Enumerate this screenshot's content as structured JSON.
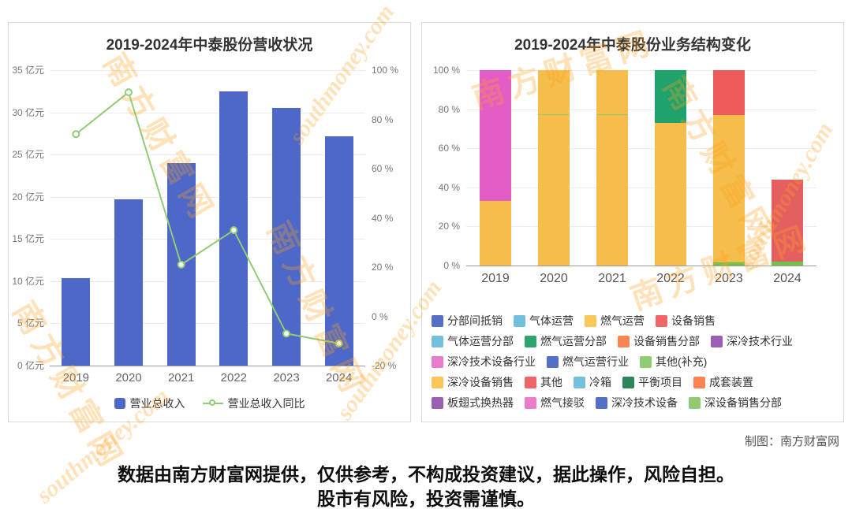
{
  "watermark": {
    "cn": "南方财富网",
    "en": "southmoney.com",
    "color": "#ffa21f"
  },
  "credit": "制图：南方财富网",
  "disclaimer": {
    "line1": "数据由南方财富网提供，仅供参考，不构成投资建议，据此操作，风险自担。",
    "line2": "股市有风险，投资需谨慎。"
  },
  "chart_data": [
    {
      "type": "bar",
      "title": "2019-2024年中泰股份营收状况",
      "categories": [
        "2019",
        "2020",
        "2021",
        "2022",
        "2023",
        "2024"
      ],
      "series": [
        {
          "name": "营业总收入",
          "type": "bar",
          "axis": "left",
          "unit": "亿元",
          "color": "#4d68c8",
          "values": [
            10.4,
            19.7,
            24,
            32.5,
            30.5,
            27.2
          ]
        },
        {
          "name": "营业总收入同比",
          "type": "line",
          "axis": "right",
          "unit": "%",
          "color": "#91cc75",
          "values": [
            74,
            91,
            21,
            35,
            -7,
            -11
          ]
        }
      ],
      "left_axis": {
        "min": 0,
        "max": 35,
        "step": 5,
        "unit": "亿元",
        "tick_labels": [
          "35 亿元",
          "30 亿元",
          "25 亿元",
          "20 亿元",
          "15 亿元",
          "10 亿元",
          "5 亿元",
          "0 亿元"
        ]
      },
      "right_axis": {
        "min": -20,
        "max": 100,
        "step": 20,
        "unit": "%",
        "tick_labels": [
          "100 %",
          "80 %",
          "60 %",
          "40 %",
          "20 %",
          "0 %",
          "-20 %"
        ]
      },
      "grid": true,
      "legend_position": "bottom"
    },
    {
      "type": "stacked-bar-100",
      "title": "2019-2024年中泰股份业务结构变化",
      "categories": [
        "2019",
        "2020",
        "2021",
        "2022",
        "2023",
        "2024"
      ],
      "y_axis": {
        "min": 0,
        "max": 100,
        "step": 20,
        "tick_labels": [
          "100 %",
          "80 %",
          "60 %",
          "40 %",
          "20 %",
          "0 %"
        ]
      },
      "stacks": [
        {
          "category": "2019",
          "segments": [
            {
              "name": "燃气运营",
              "color": "#f5bd4b",
              "value": 33
            },
            {
              "name": "深冷技术设备行业",
              "color": "#e05ec5",
              "value": 67
            }
          ]
        },
        {
          "category": "2020",
          "segments": [
            {
              "name": "燃气运营",
              "color": "#f5bd4b",
              "value": 77
            },
            {
              "name": "其他(补充)",
              "color": "#91cc75",
              "value": 0.6
            },
            {
              "name": "燃气运营",
              "color": "#f5bd4b",
              "value": 22.4
            }
          ]
        },
        {
          "category": "2021",
          "segments": [
            {
              "name": "燃气运营",
              "color": "#f5bd4b",
              "value": 77
            },
            {
              "name": "其他(补充)",
              "color": "#91cc75",
              "value": 0.6
            },
            {
              "name": "燃气运营",
              "color": "#f5bd4b",
              "value": 22.4
            }
          ]
        },
        {
          "category": "2022",
          "segments": [
            {
              "name": "燃气运营",
              "color": "#f5bd4b",
              "value": 73
            },
            {
              "name": "燃气运营分部",
              "color": "#1fa26b",
              "value": 27
            }
          ]
        },
        {
          "category": "2023",
          "segments": [
            {
              "name": "其他(补充)",
              "color": "#6fc24b",
              "value": 1.5
            },
            {
              "name": "燃气运营",
              "color": "#f5bd4b",
              "value": 75.5
            },
            {
              "name": "设备销售",
              "color": "#ee5b5b",
              "value": 23
            }
          ]
        },
        {
          "category": "2024",
          "segments": [
            {
              "name": "其他(补充)",
              "color": "#6fc24b",
              "value": 2
            },
            {
              "name": "设备销售",
              "color": "#e45f5f",
              "value": 42
            }
          ]
        }
      ],
      "legend_rows": [
        [
          {
            "label": "分部间抵销",
            "color": "#5470c6"
          },
          {
            "label": "气体运营",
            "color": "#73c0de"
          },
          {
            "label": "燃气运营",
            "color": "#fac858"
          },
          {
            "label": "设备销售",
            "color": "#ee6666"
          }
        ],
        [
          {
            "label": "气体运营分部",
            "color": "#73c0de"
          },
          {
            "label": "燃气运营分部",
            "color": "#2fa36f"
          },
          {
            "label": "设备销售分部",
            "color": "#fc8452"
          },
          {
            "label": "深冷技术行业",
            "color": "#9a60b4"
          }
        ],
        [
          {
            "label": "深冷技术设备行业",
            "color": "#ea7ccc"
          },
          {
            "label": "燃气运营行业",
            "color": "#5470c6"
          },
          {
            "label": "其他(补充)",
            "color": "#91cc75"
          }
        ],
        [
          {
            "label": "深冷设备销售",
            "color": "#fac858"
          },
          {
            "label": "其他",
            "color": "#ee6666"
          },
          {
            "label": "冷箱",
            "color": "#73c0de"
          },
          {
            "label": "平衡项目",
            "color": "#2d8659"
          },
          {
            "label": "成套装置",
            "color": "#fc8452"
          }
        ],
        [
          {
            "label": "板翅式换热器",
            "color": "#9a60b4"
          },
          {
            "label": "燃气接驳",
            "color": "#ea7ccc"
          },
          {
            "label": "深冷技术设备",
            "color": "#5470c6"
          },
          {
            "label": "深设备销售分部",
            "color": "#91cc75"
          }
        ]
      ]
    }
  ]
}
